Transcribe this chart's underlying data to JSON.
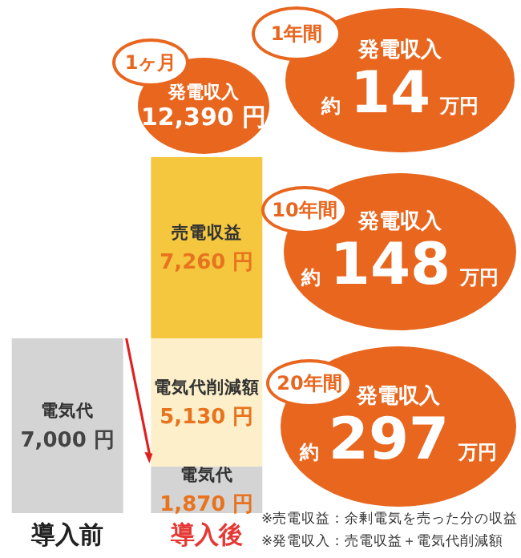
{
  "chart_data": {
    "type": "bar",
    "stacked": true,
    "categories": [
      "導入前",
      "導入後"
    ],
    "series": [
      {
        "name": "電気代",
        "color": "#d4d4d4",
        "values": [
          7000,
          1870
        ],
        "value_labels": [
          "7,000 円",
          "1,870 円"
        ]
      },
      {
        "name": "電気代削減額",
        "color": "#fcefc9",
        "values": [
          null,
          5130
        ],
        "value_labels": [
          null,
          "5,130 円"
        ]
      },
      {
        "name": "売電収益",
        "color": "#f4c73e",
        "values": [
          null,
          7260
        ],
        "value_labels": [
          null,
          "7,260 円"
        ]
      }
    ],
    "legend": false,
    "annotations": [
      "1ヶ月",
      "発電収入",
      "12,390 円",
      "1年間",
      "発電収入",
      "約",
      "14",
      "万円",
      "10年間",
      "発電収入",
      "約",
      "148",
      "万円",
      "20年間",
      "発電収入",
      "約",
      "297",
      "万円",
      "※売電収益：余剰電気を売った分の収益",
      "※発電収入：売電収益＋電気代削減額"
    ]
  }
}
